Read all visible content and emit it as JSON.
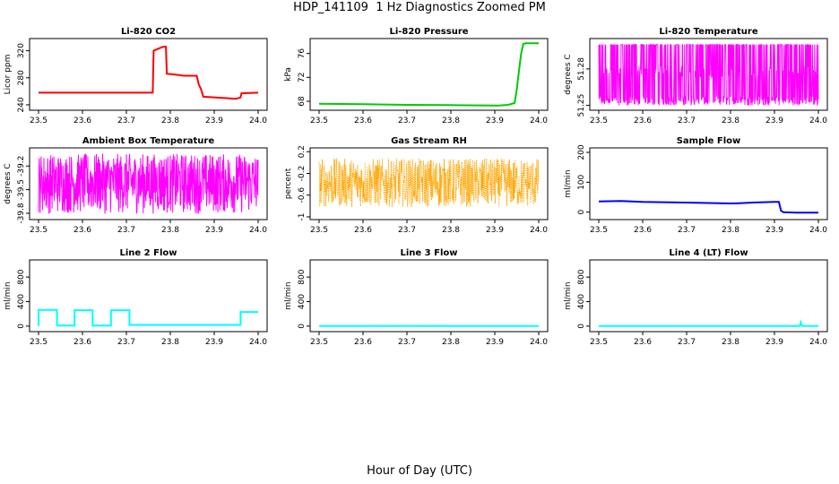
{
  "figure": {
    "title": "HDP_141109  1 Hz Diagnostics Zoomed PM",
    "xlabel": "Hour of Day (UTC)"
  },
  "chart_data": [
    {
      "type": "line",
      "title": "Li-820 CO2",
      "ylabel": "Licor ppm",
      "color": "#ff0000",
      "xlim": [
        23.5,
        24.0
      ],
      "ylim": [
        232,
        338
      ],
      "xticks": [
        "23.5",
        "23.6",
        "23.7",
        "23.8",
        "23.9",
        "24.0"
      ],
      "yticks": [
        240,
        280,
        320
      ],
      "series": [
        {
          "x": [
            23.5,
            23.6,
            23.7,
            23.76,
            23.762,
            23.78,
            23.785,
            23.79,
            23.792,
            23.82,
            23.83,
            23.86,
            23.865,
            23.87,
            23.875,
            23.95,
            23.955,
            23.96,
            23.962,
            24.0
          ],
          "y": [
            258,
            258,
            258,
            258,
            320,
            325,
            326,
            326,
            286,
            284,
            283,
            283,
            270,
            263,
            252,
            249,
            250,
            251,
            257,
            258
          ]
        }
      ]
    },
    {
      "type": "line",
      "title": "Li-820 Pressure",
      "ylabel": "kPa",
      "color": "#00cc00",
      "xlim": [
        23.5,
        24.0
      ],
      "ylim": [
        66.5,
        78.5
      ],
      "xticks": [
        "23.5",
        "23.6",
        "23.7",
        "23.8",
        "23.9",
        "24.0"
      ],
      "yticks": [
        68,
        72,
        76
      ],
      "series": [
        {
          "x": [
            23.5,
            23.6,
            23.7,
            23.8,
            23.9,
            23.91,
            23.93,
            23.945,
            23.95,
            23.955,
            23.96,
            23.965,
            23.97,
            24.0
          ],
          "y": [
            67.6,
            67.5,
            67.4,
            67.35,
            67.3,
            67.3,
            67.4,
            67.7,
            70,
            73,
            76,
            77.6,
            77.7,
            77.7
          ]
        }
      ]
    },
    {
      "type": "line",
      "title": "Li-820 Temperature",
      "ylabel": "degrees C",
      "color": "#ff00ff",
      "xlim": [
        23.5,
        24.0
      ],
      "ylim": [
        51.246,
        51.305
      ],
      "xticks": [
        "23.5",
        "23.6",
        "23.7",
        "23.8",
        "23.9",
        "24.0"
      ],
      "yticks": [
        51.25,
        51.28
      ],
      "series": [
        {
          "x": [
            23.5,
            24.0
          ],
          "y": [
            51.25,
            51.3
          ]
        }
      ]
    },
    {
      "type": "line",
      "title": "Ambient Box Temperature",
      "ylabel": "degrees C",
      "color": "#ff00ff",
      "xlim": [
        23.5,
        24.0
      ],
      "ylim": [
        -39.88,
        -38.97
      ],
      "xticks": [
        "23.5",
        "23.6",
        "23.7",
        "23.8",
        "23.9",
        "24.0"
      ],
      "yticks": [
        -39.8,
        -39.5,
        -39.2
      ],
      "series": [
        {
          "x": [
            23.5,
            24.0
          ],
          "y": [
            -39.85,
            -39.0
          ]
        }
      ]
    },
    {
      "type": "line",
      "title": "Gas Stream RH",
      "ylabel": "percent",
      "color": "#ffa500",
      "xlim": [
        23.5,
        24.0
      ],
      "ylim": [
        -1.05,
        0.27
      ],
      "xticks": [
        "23.5",
        "23.6",
        "23.7",
        "23.8",
        "23.9",
        "24.0"
      ],
      "yticks": [
        -1.0,
        -0.6,
        -0.2,
        0.2
      ],
      "series": [
        {
          "x": [
            23.5,
            24.0
          ],
          "y": [
            -1.0,
            0.2
          ]
        }
      ]
    },
    {
      "type": "line",
      "title": "Sample Flow",
      "ylabel": "ml/min",
      "color": "#0000ff",
      "xlim": [
        23.5,
        24.0
      ],
      "ylim": [
        -25,
        215
      ],
      "xticks": [
        "23.5",
        "23.6",
        "23.7",
        "23.8",
        "23.9",
        "24.0"
      ],
      "yticks": [
        0,
        100,
        200
      ],
      "series": [
        {
          "x": [
            23.5,
            23.55,
            23.6,
            23.7,
            23.8,
            23.82,
            23.85,
            23.9,
            23.91,
            23.915,
            23.92,
            23.95,
            24.0
          ],
          "y": [
            36,
            37,
            34,
            32,
            29,
            30,
            32,
            34,
            34,
            5,
            0,
            -2,
            -2
          ]
        }
      ]
    },
    {
      "type": "line",
      "title": "Line 2 Flow",
      "ylabel": "ml/min",
      "color": "#00ffff",
      "xlim": [
        23.5,
        24.0
      ],
      "ylim": [
        -90,
        1080
      ],
      "xticks": [
        "23.5",
        "23.6",
        "23.7",
        "23.8",
        "23.9",
        "24.0"
      ],
      "yticks": [
        0,
        400,
        800
      ],
      "series": [
        {
          "x": [
            23.5,
            23.5,
            23.542,
            23.542,
            23.582,
            23.582,
            23.623,
            23.623,
            23.665,
            23.665,
            23.707,
            23.707,
            23.96,
            23.96,
            24.0
          ],
          "y": [
            0,
            265,
            265,
            10,
            10,
            260,
            260,
            8,
            8,
            260,
            260,
            20,
            20,
            230,
            230
          ]
        }
      ]
    },
    {
      "type": "line",
      "title": "Line 3 Flow",
      "ylabel": "ml/min",
      "color": "#00ffff",
      "xlim": [
        23.5,
        24.0
      ],
      "ylim": [
        -90,
        1080
      ],
      "xticks": [
        "23.5",
        "23.6",
        "23.7",
        "23.8",
        "23.9",
        "24.0"
      ],
      "yticks": [
        0,
        400,
        800
      ],
      "series": [
        {
          "x": [
            23.5,
            23.6,
            23.7,
            23.8,
            23.9,
            24.0
          ],
          "y": [
            2,
            2,
            3,
            2,
            2,
            2
          ]
        }
      ]
    },
    {
      "type": "line",
      "title": "Line 4 (LT) Flow",
      "ylabel": "ml/min",
      "color": "#00ffff",
      "xlim": [
        23.5,
        24.0
      ],
      "ylim": [
        -90,
        1080
      ],
      "xticks": [
        "23.5",
        "23.6",
        "23.7",
        "23.8",
        "23.9",
        "24.0"
      ],
      "yticks": [
        0,
        400,
        800
      ],
      "series": [
        {
          "x": [
            23.5,
            23.955,
            23.958,
            23.96,
            23.962,
            23.965,
            24.0
          ],
          "y": [
            0,
            0,
            10,
            60,
            10,
            0,
            0
          ]
        }
      ]
    }
  ]
}
